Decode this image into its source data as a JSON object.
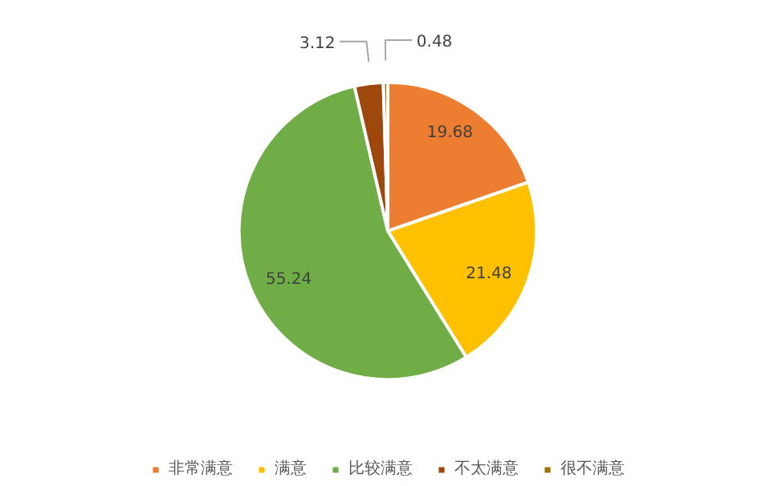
{
  "chart_data": {
    "type": "pie",
    "categories": [
      "非常满意",
      "满意",
      "比较满意",
      "不太满意",
      "很不满意"
    ],
    "values": [
      19.68,
      21.48,
      55.24,
      3.12,
      0.48
    ],
    "colors": [
      "#ed7d31",
      "#ffc000",
      "#70ad47",
      "#9e480e",
      "#997300"
    ],
    "data_labels": true,
    "legend": "bottom"
  }
}
